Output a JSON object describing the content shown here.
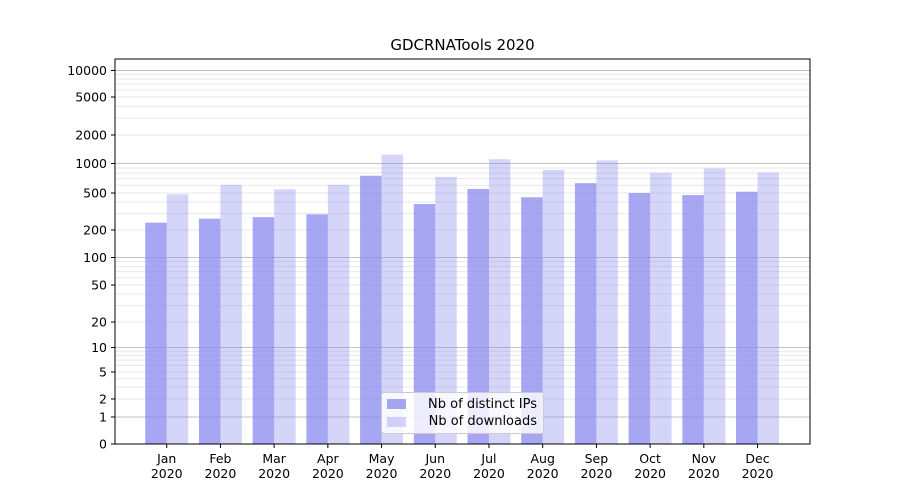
{
  "chart_data": {
    "type": "bar",
    "title": "GDCRNATools 2020",
    "xlabel": "",
    "ylabel": "",
    "yscale": "symlog",
    "ylim": [
      0,
      13000
    ],
    "yticks": [
      0,
      1,
      2,
      5,
      10,
      20,
      50,
      100,
      200,
      500,
      1000,
      2000,
      5000,
      10000
    ],
    "grid": "horizontal major and minor gridlines",
    "legend_position": "lower center inside plot",
    "months": [
      "Jan",
      "Feb",
      "Mar",
      "Apr",
      "May",
      "Jun",
      "Jul",
      "Aug",
      "Sep",
      "Oct",
      "Nov",
      "Dec"
    ],
    "x_tick_year": "2020",
    "categories": [
      "Jan 2020",
      "Feb 2020",
      "Mar 2020",
      "Apr 2020",
      "May 2020",
      "Jun 2020",
      "Jul 2020",
      "Aug 2020",
      "Sep 2020",
      "Oct 2020",
      "Nov 2020",
      "Dec 2020"
    ],
    "series": [
      {
        "name": "Nb of distinct IPs",
        "color": "#8888ee",
        "opacity": 0.75,
        "values": [
          240,
          265,
          275,
          295,
          750,
          380,
          550,
          450,
          630,
          500,
          475,
          515
        ]
      },
      {
        "name": "Nb of downloads",
        "color": "#8888ee",
        "opacity": 0.35,
        "values": [
          485,
          605,
          545,
          605,
          1240,
          730,
          1110,
          860,
          1080,
          805,
          890,
          810
        ]
      }
    ]
  }
}
